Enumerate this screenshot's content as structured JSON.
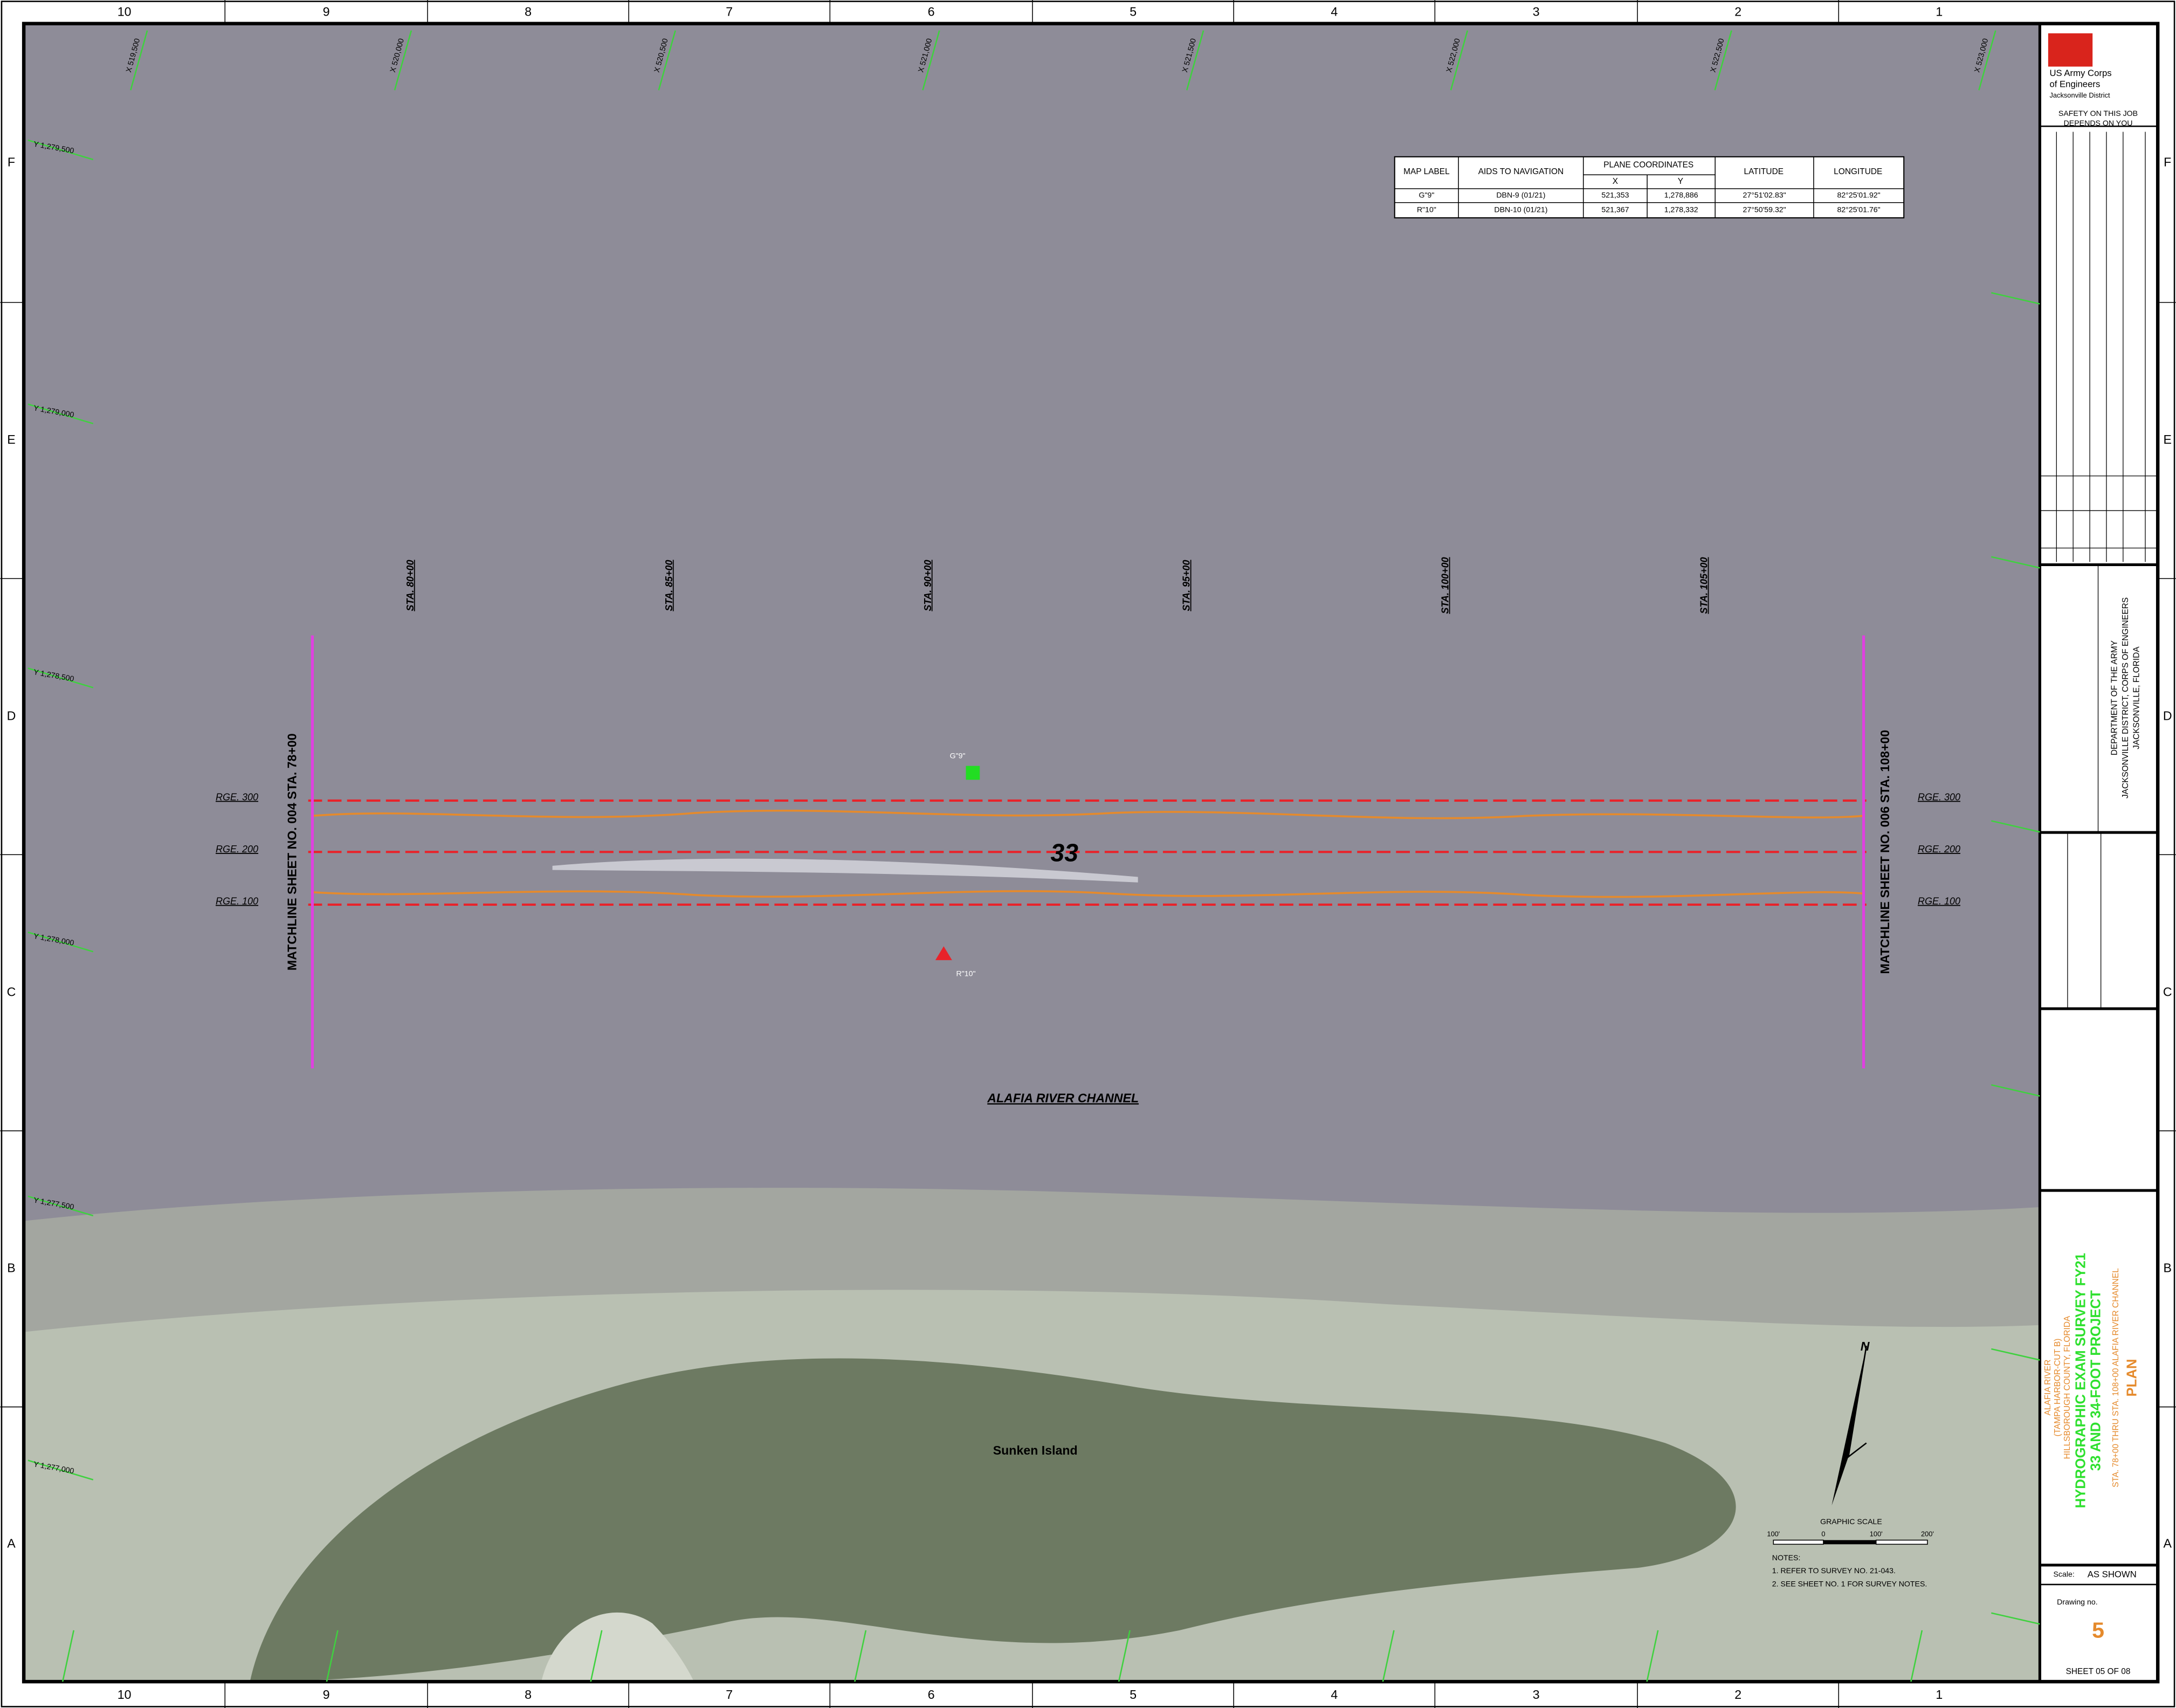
{
  "grid": {
    "columns": [
      "10",
      "9",
      "8",
      "7",
      "6",
      "5",
      "4",
      "3",
      "2",
      "1"
    ],
    "rows": [
      "F",
      "E",
      "D",
      "C",
      "B",
      "A"
    ]
  },
  "coordinates": {
    "x": [
      "X 519,500",
      "X 520,000",
      "X 520,500",
      "X 521,000",
      "X 521,500",
      "X 522,000",
      "X 522,500",
      "X 523,000"
    ],
    "y": [
      "Y 1,279,500",
      "Y 1,279,000",
      "Y 1,278,500",
      "Y 1,278,000",
      "Y 1,277,500",
      "Y 1,277,000"
    ]
  },
  "map": {
    "stations": [
      "STA. 80+00",
      "STA. 85+00",
      "STA. 90+00",
      "STA. 95+00",
      "STA. 100+00",
      "STA. 105+00"
    ],
    "ranges": [
      "RGE. 300",
      "RGE. 200",
      "RGE. 100"
    ],
    "matchlines": [
      "MATCHLINE SHEET NO. 004 STA. 78+00",
      "MATCHLINE SHEET NO. 006 STA. 108+00"
    ],
    "channel_name": "ALAFIA RIVER CHANNEL",
    "depth_label": "33",
    "island": "Sunken Island",
    "aids": [
      "G\"9\"",
      "R\"10\""
    ]
  },
  "table": {
    "headers": [
      "MAP LABEL",
      "AIDS TO NAVIGATION",
      "PLANE COORDINATES",
      "X",
      "Y",
      "LATITUDE",
      "LONGITUDE"
    ],
    "rows": [
      [
        "G\"9\"",
        "DBN-9 (01/21)",
        "521,353",
        "1,278,886",
        "27°51'02.83\"",
        "82°25'01.92\""
      ],
      [
        "R\"10\"",
        "DBN-10 (01/21)",
        "521,367",
        "1,278,332",
        "27°50'59.32\"",
        "82°25'01.76\""
      ]
    ]
  },
  "scale_bar": {
    "title": "GRAPHIC SCALE",
    "ticks": [
      "100'",
      "0",
      "100'",
      "200'"
    ],
    "north": "N"
  },
  "notes": [
    "NOTES:",
    "1. REFER TO SURVEY NO. 21-043.",
    "2. SEE SHEET NO. 1 FOR SURVEY NOTES."
  ],
  "title_block": {
    "agency": [
      "US Army Corps",
      "of Engineers",
      "Jacksonville District"
    ],
    "safety": [
      "SAFETY ON THIS JOB",
      "DEPENDS ON YOU"
    ],
    "department": [
      "DEPARTMENT OF THE ARMY",
      "JACKSONVILLE DISTRICT, CORPS OF ENGINEERS",
      "JACKSONVILLE, FLORIDA"
    ],
    "project": [
      "ALAFIA RIVER",
      "(TAMPA HARBOR-CUT B)",
      "HILLSBOROUGH COUNTY, FLORIDA"
    ],
    "survey": [
      "HYDROGRAPHIC EXAM SURVEY FY21",
      "33 AND 34-FOOT PROJECT"
    ],
    "subtitle": "STA. 78+00 THRU STA. 108+00 ALAFIA RIVER CHANNEL",
    "sheet_title": "PLAN",
    "scale_label": "Scale:",
    "scale_value": "AS SHOWN",
    "drawing_label": "Drawing no.",
    "drawing_no": "5",
    "sheet": "SHEET 05 OF 08"
  }
}
